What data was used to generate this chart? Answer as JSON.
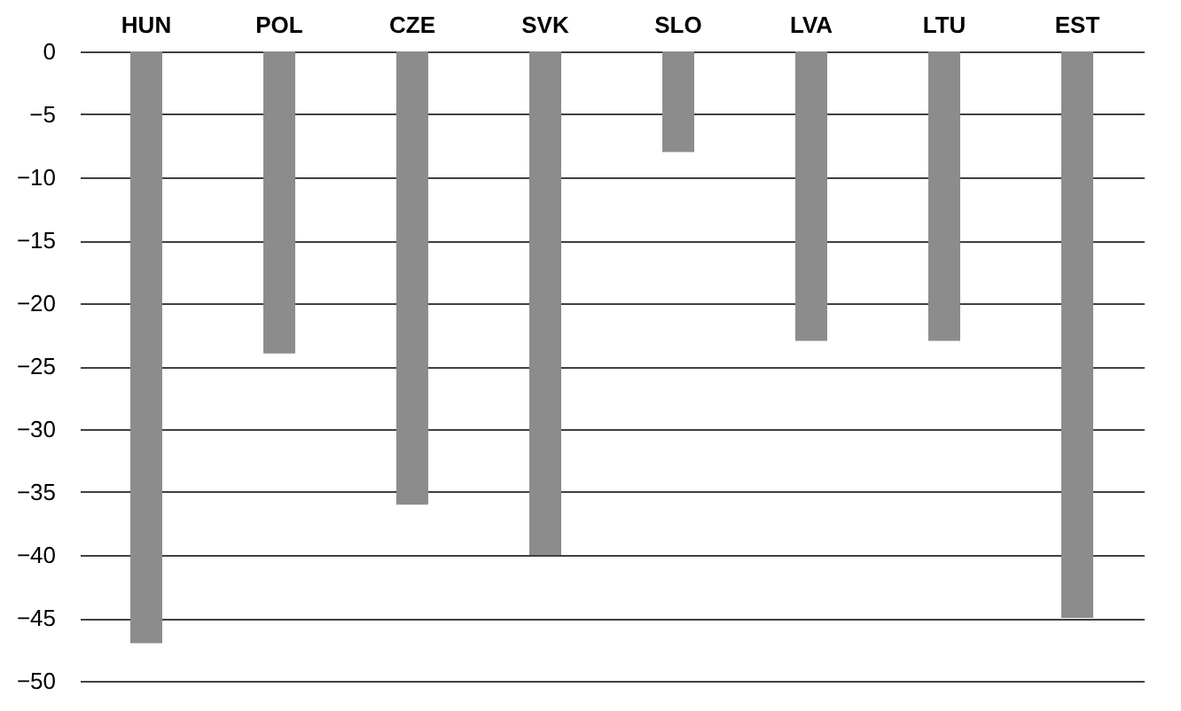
{
  "chart_data": {
    "type": "bar",
    "categories": [
      "HUN",
      "POL",
      "CZE",
      "SVK",
      "SLO",
      "LVA",
      "LTU",
      "EST"
    ],
    "values": [
      -47,
      -24,
      -36,
      -40,
      -8,
      -23,
      -23,
      -45
    ],
    "color": "#8c8c8c",
    "ylim": [
      -50,
      0
    ],
    "yticks": [
      0,
      -5,
      -10,
      -15,
      -20,
      -25,
      -30,
      -35,
      -40,
      -45,
      -50
    ],
    "grid": "y"
  }
}
